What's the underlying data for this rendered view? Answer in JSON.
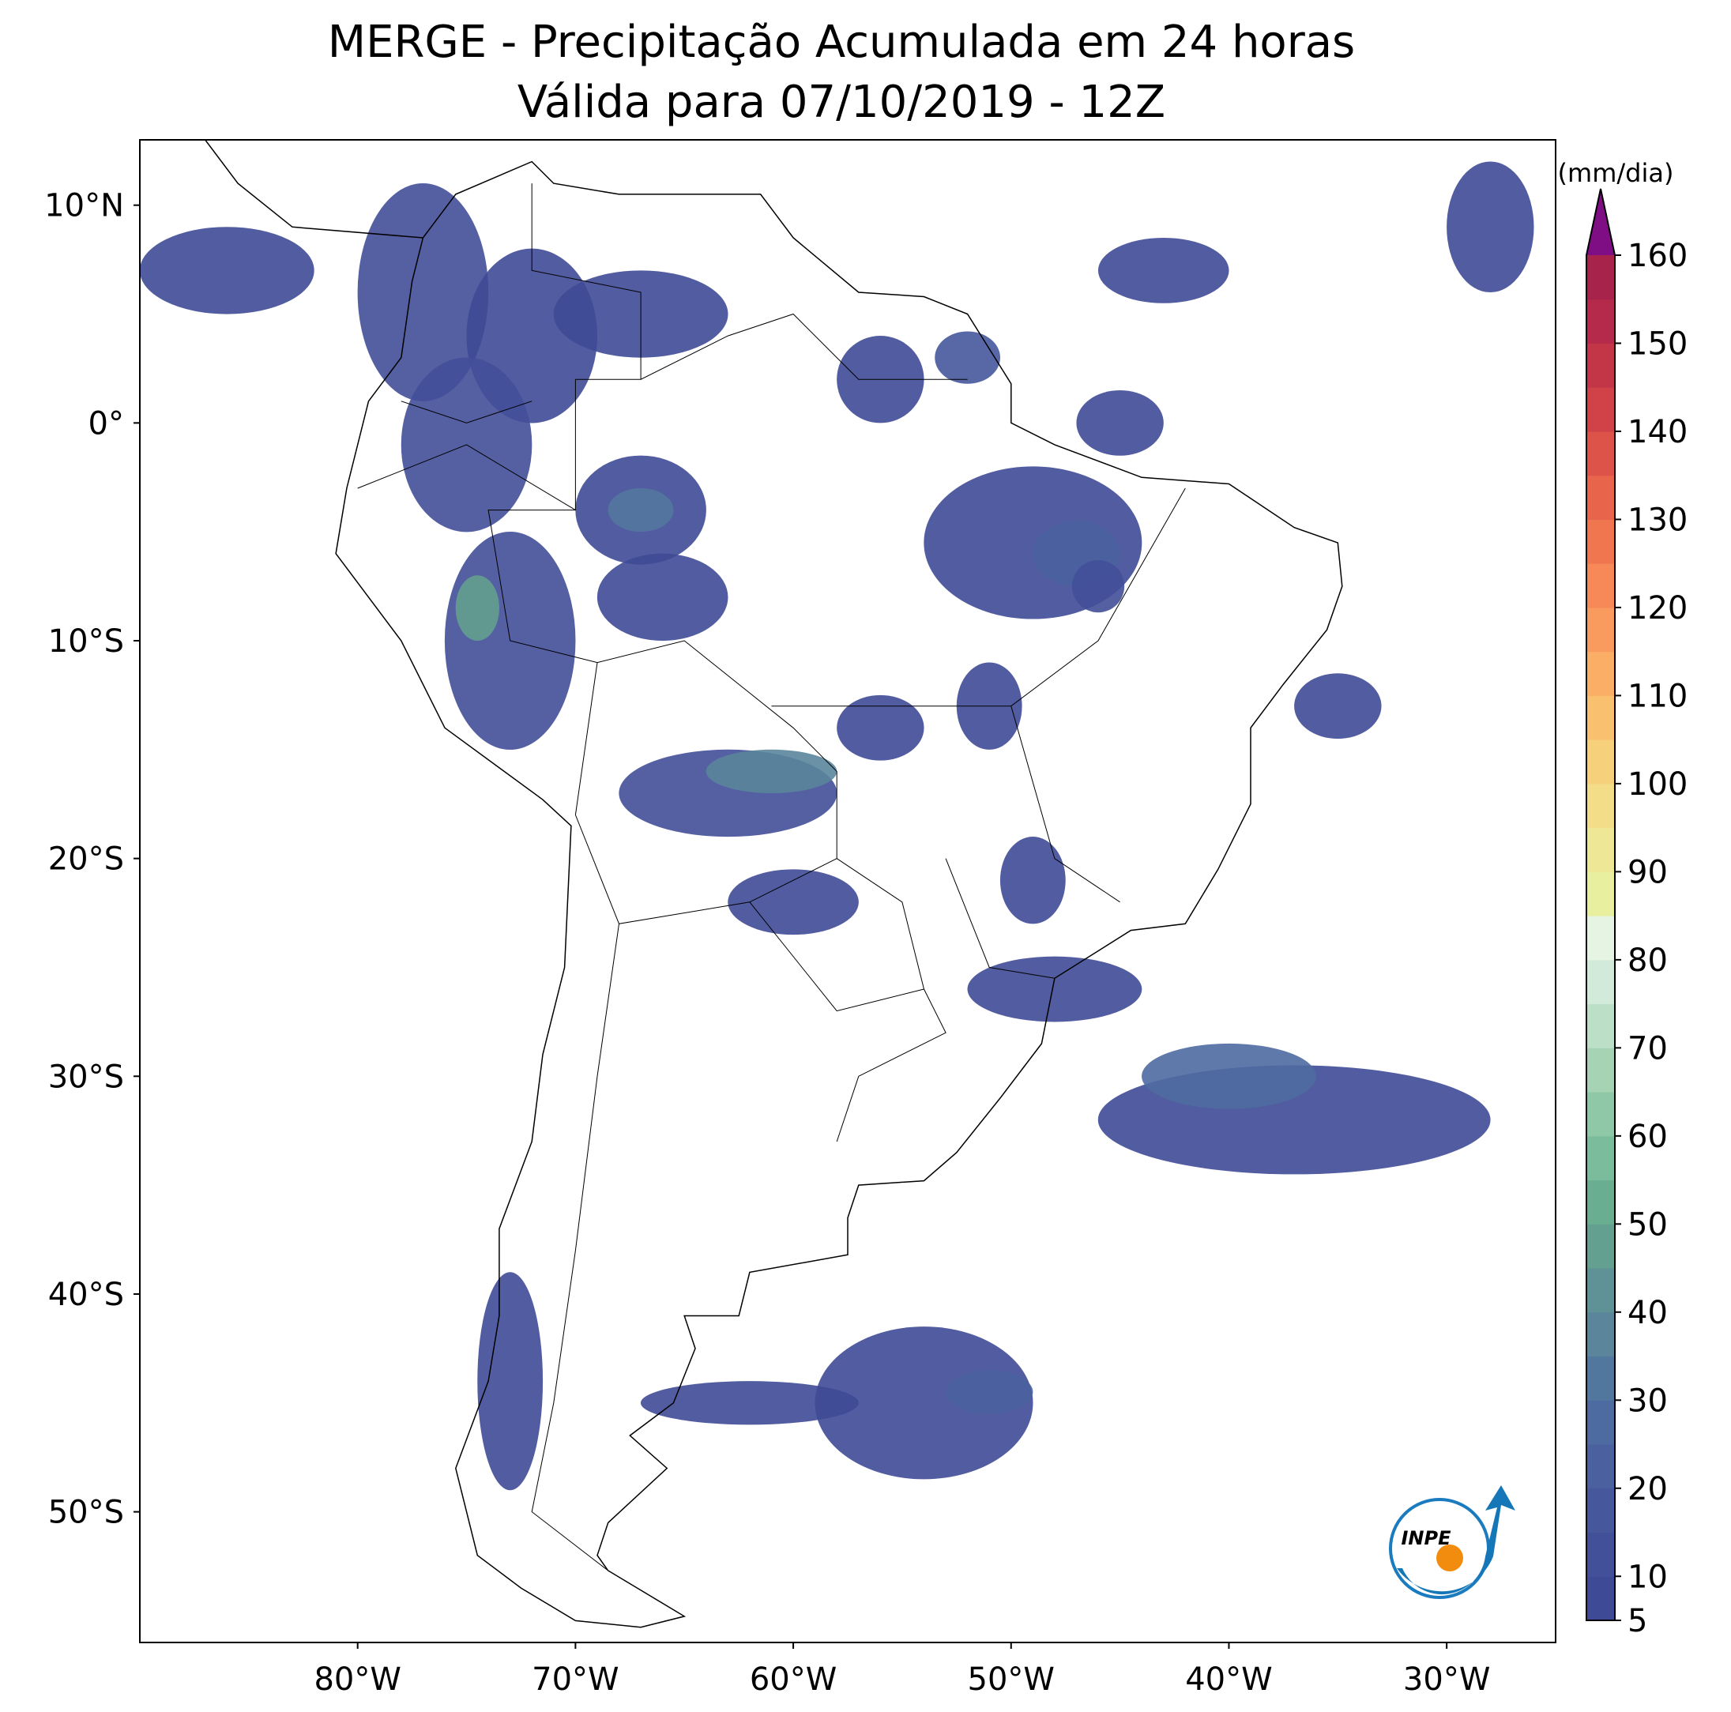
{
  "chart_data": {
    "type": "map",
    "title": "MERGE - Precipitação Acumulada em 24 horas",
    "subtitle": "Válida para 07/10/2019 - 12Z",
    "xlim": [
      -90,
      -25
    ],
    "ylim": [
      -56,
      13
    ],
    "xticks": [
      {
        "value": -80,
        "label": "80°W"
      },
      {
        "value": -70,
        "label": "70°W"
      },
      {
        "value": -60,
        "label": "60°W"
      },
      {
        "value": -50,
        "label": "50°W"
      },
      {
        "value": -40,
        "label": "40°W"
      },
      {
        "value": -30,
        "label": "30°W"
      }
    ],
    "yticks": [
      {
        "value": 10,
        "label": "10°N"
      },
      {
        "value": 0,
        "label": "0°"
      },
      {
        "value": -10,
        "label": "10°S"
      },
      {
        "value": -20,
        "label": "20°S"
      },
      {
        "value": -30,
        "label": "30°S"
      },
      {
        "value": -40,
        "label": "40°S"
      },
      {
        "value": -50,
        "label": "50°S"
      }
    ],
    "colorbar": {
      "label": "(mm/dia)",
      "range": [
        5,
        160
      ],
      "ticks": [
        5,
        10,
        20,
        30,
        40,
        50,
        60,
        70,
        80,
        90,
        100,
        110,
        120,
        130,
        140,
        150,
        160
      ],
      "colors": [
        "#3f4a96",
        "#424f99",
        "#46579c",
        "#4a609f",
        "#4e6ba1",
        "#52779f",
        "#5a859b",
        "#5f9296",
        "#63a08f",
        "#6aae92",
        "#7bbc9c",
        "#8fc8a7",
        "#a5d3b4",
        "#bcdfc7",
        "#d2eada",
        "#e6f4e4",
        "#e8f0a0",
        "#eee896",
        "#f3dd88",
        "#f7d07b",
        "#f9c070",
        "#faae66",
        "#f99b5e",
        "#f68957",
        "#f07650",
        "#e8644b",
        "#dd5249",
        "#d04248",
        "#c33648",
        "#b52a4a",
        "#a8234c"
      ],
      "extend_color": "#7f0d84"
    },
    "logo": "INPE"
  }
}
